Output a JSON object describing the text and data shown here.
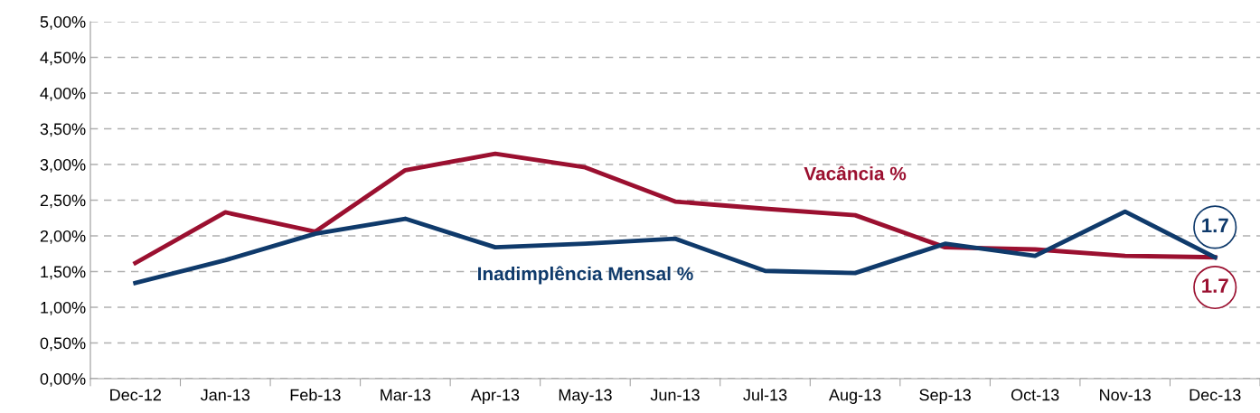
{
  "chart_data": {
    "type": "line",
    "categories": [
      "Dec-12",
      "Jan-13",
      "Feb-13",
      "Mar-13",
      "Apr-13",
      "May-13",
      "Jun-13",
      "Jul-13",
      "Aug-13",
      "Sep-13",
      "Oct-13",
      "Nov-13",
      "Dec-13"
    ],
    "series": [
      {
        "name": "Vacância %",
        "color": "#9b1030",
        "values": [
          1.62,
          2.33,
          2.06,
          2.92,
          3.15,
          2.96,
          2.48,
          2.38,
          2.29,
          1.84,
          1.81,
          1.72,
          1.7
        ],
        "value_labels": [
          null,
          null,
          null,
          null,
          null,
          null,
          null,
          null,
          null,
          null,
          null,
          null,
          "1.7"
        ]
      },
      {
        "name": "Inadimplência Mensal %",
        "color": "#0f3a6b",
        "values": [
          1.34,
          1.66,
          2.03,
          2.24,
          1.84,
          1.89,
          1.96,
          1.51,
          1.48,
          1.89,
          1.72,
          2.34,
          1.7
        ],
        "value_labels": [
          null,
          null,
          null,
          null,
          null,
          null,
          null,
          null,
          null,
          null,
          null,
          null,
          "1.7"
        ]
      }
    ],
    "ylim": [
      0,
      5
    ],
    "yticks": [
      {
        "value": 0,
        "label": "0,00%"
      },
      {
        "value": 0.5,
        "label": "0,50%"
      },
      {
        "value": 1,
        "label": "1,00%"
      },
      {
        "value": 1.5,
        "label": "1,50%"
      },
      {
        "value": 2,
        "label": "2,00%"
      },
      {
        "value": 2.5,
        "label": "2,50%"
      },
      {
        "value": 3,
        "label": "3,00%"
      },
      {
        "value": 3.5,
        "label": "3,50%"
      },
      {
        "value": 4,
        "label": "4,00%"
      },
      {
        "value": 4.5,
        "label": "4,50%"
      },
      {
        "value": 5,
        "label": "5,00%"
      }
    ],
    "grid": "y",
    "legend": false,
    "marker": "none",
    "line_style": "solid"
  }
}
